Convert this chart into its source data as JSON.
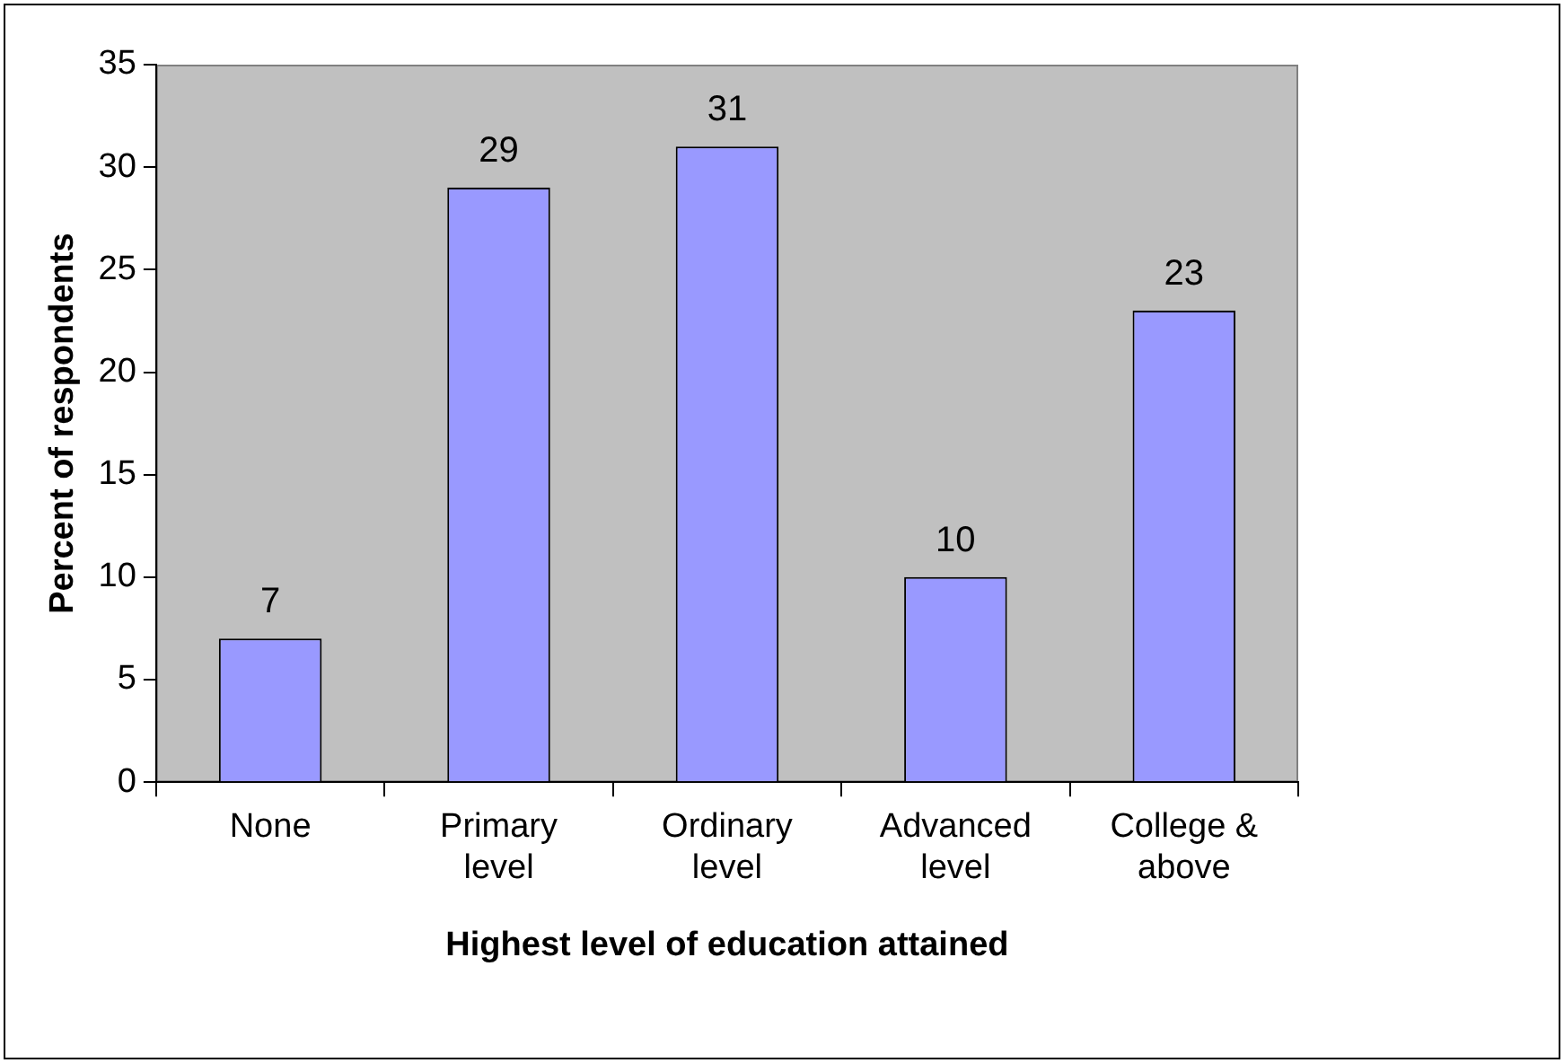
{
  "chart_data": {
    "type": "bar",
    "xlabel": "Highest level of education attained",
    "ylabel": "Percent of respondents",
    "categories": [
      "None",
      "Primary\nlevel",
      "Ordinary\nlevel",
      "Advanced\nlevel",
      "College &\nabove"
    ],
    "values": [
      7,
      29,
      31,
      10,
      23
    ],
    "color": "#9999ff",
    "ylim": [
      0,
      35
    ],
    "yticks": [
      0,
      5,
      10,
      15,
      20,
      25,
      30,
      35
    ],
    "grid": false,
    "legend": false,
    "data_labels": true
  }
}
